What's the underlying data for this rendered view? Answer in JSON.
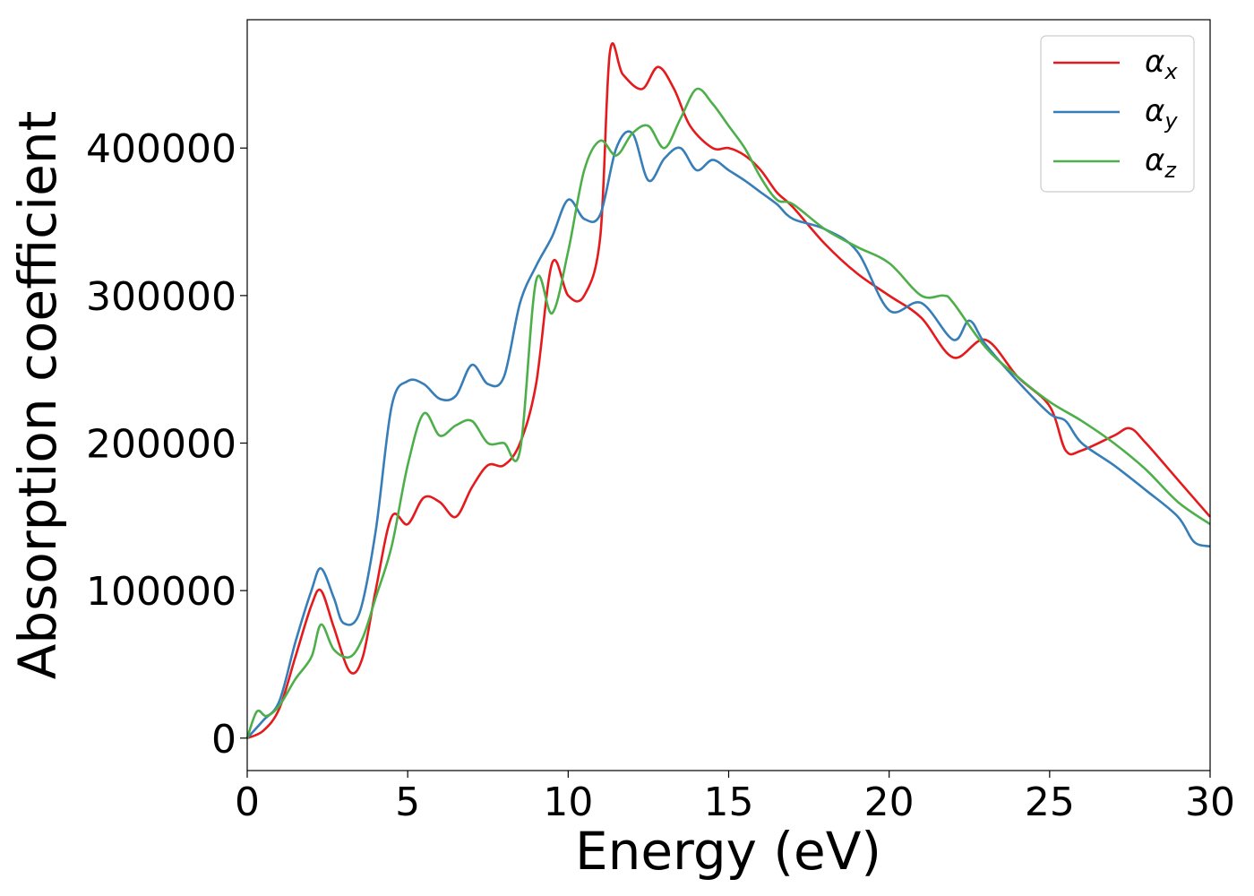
{
  "chart_data": {
    "type": "line",
    "title": "",
    "xlabel": "Energy (eV)",
    "ylabel": "Absorption coefficient",
    "xlim": [
      0,
      30
    ],
    "ylim": [
      -22000,
      487000
    ],
    "x_ticks": [
      "0",
      "5",
      "10",
      "15",
      "20",
      "25",
      "30"
    ],
    "y_ticks": [
      "0",
      "100000",
      "200000",
      "300000",
      "400000"
    ],
    "grid": false,
    "legend_position": "top-right",
    "series": [
      {
        "name": "α_x",
        "symbol": "α",
        "subscript": "x",
        "color": "#e41a1c",
        "x": [
          0,
          0.5,
          1,
          1.5,
          2,
          2.3,
          2.7,
          3.2,
          3.6,
          4,
          4.5,
          5,
          5.5,
          6,
          6.5,
          7,
          7.5,
          8,
          8.5,
          9,
          9.5,
          10,
          10.5,
          11,
          11.3,
          11.7,
          12.3,
          12.8,
          13.3,
          13.8,
          14.5,
          15,
          15.5,
          16,
          16.5,
          17,
          18,
          19,
          20,
          21,
          22,
          23,
          24,
          25,
          25.5,
          26,
          27,
          27.5,
          28,
          29,
          30
        ],
        "y": [
          0,
          5000,
          20000,
          55000,
          90000,
          100000,
          75000,
          45000,
          55000,
          100000,
          150000,
          145000,
          163000,
          160000,
          150000,
          170000,
          185000,
          185000,
          200000,
          240000,
          322000,
          300000,
          300000,
          340000,
          465000,
          450000,
          440000,
          455000,
          440000,
          415000,
          400000,
          400000,
          395000,
          385000,
          370000,
          360000,
          335000,
          315000,
          300000,
          285000,
          258000,
          270000,
          245000,
          225000,
          195000,
          195000,
          205000,
          210000,
          200000,
          175000,
          150000
        ]
      },
      {
        "name": "α_y",
        "symbol": "α",
        "subscript": "y",
        "color": "#377eb8",
        "x": [
          0,
          0.5,
          1,
          1.5,
          2,
          2.3,
          2.7,
          3,
          3.5,
          4,
          4.5,
          5,
          5.5,
          6,
          6.5,
          7,
          7.5,
          8,
          8.5,
          9,
          9.5,
          10,
          10.5,
          11,
          11.5,
          12,
          12.5,
          13,
          13.5,
          14,
          14.5,
          15,
          15.5,
          16,
          16.5,
          17,
          18,
          19,
          20,
          21,
          22,
          22.5,
          23,
          24,
          25,
          25.5,
          26,
          27,
          28,
          29,
          29.5,
          30
        ],
        "y": [
          0,
          12000,
          25000,
          65000,
          100000,
          115000,
          95000,
          78000,
          85000,
          140000,
          225000,
          242000,
          240000,
          230000,
          232000,
          253000,
          240000,
          245000,
          295000,
          320000,
          340000,
          365000,
          352000,
          355000,
          400000,
          410000,
          378000,
          393000,
          400000,
          385000,
          392000,
          385000,
          378000,
          370000,
          362000,
          352000,
          345000,
          330000,
          290000,
          295000,
          270000,
          283000,
          267000,
          242000,
          220000,
          215000,
          200000,
          185000,
          168000,
          150000,
          133000,
          130000
        ]
      },
      {
        "name": "α_z",
        "symbol": "α",
        "subscript": "z",
        "color": "#4daf4a",
        "x": [
          0,
          0.3,
          0.6,
          1,
          1.5,
          2,
          2.3,
          2.7,
          3.2,
          3.6,
          4,
          4.5,
          5,
          5.5,
          6,
          6.5,
          7,
          7.5,
          8,
          8.5,
          9,
          9.5,
          10,
          10.5,
          11,
          11.5,
          12,
          12.5,
          13,
          13.5,
          14,
          14.5,
          15,
          15.5,
          16,
          16.5,
          17,
          18,
          19,
          20,
          21,
          21.7,
          22,
          23,
          24,
          25,
          26,
          27,
          28,
          29,
          30
        ],
        "y": [
          0,
          18000,
          15000,
          22000,
          40000,
          55000,
          77000,
          60000,
          55000,
          68000,
          95000,
          130000,
          185000,
          220000,
          205000,
          212000,
          215000,
          200000,
          200000,
          195000,
          310000,
          288000,
          330000,
          385000,
          405000,
          395000,
          410000,
          415000,
          400000,
          420000,
          440000,
          430000,
          415000,
          400000,
          380000,
          365000,
          362000,
          345000,
          333000,
          322000,
          300000,
          300000,
          295000,
          265000,
          245000,
          228000,
          215000,
          200000,
          182000,
          160000,
          145000
        ]
      }
    ]
  }
}
